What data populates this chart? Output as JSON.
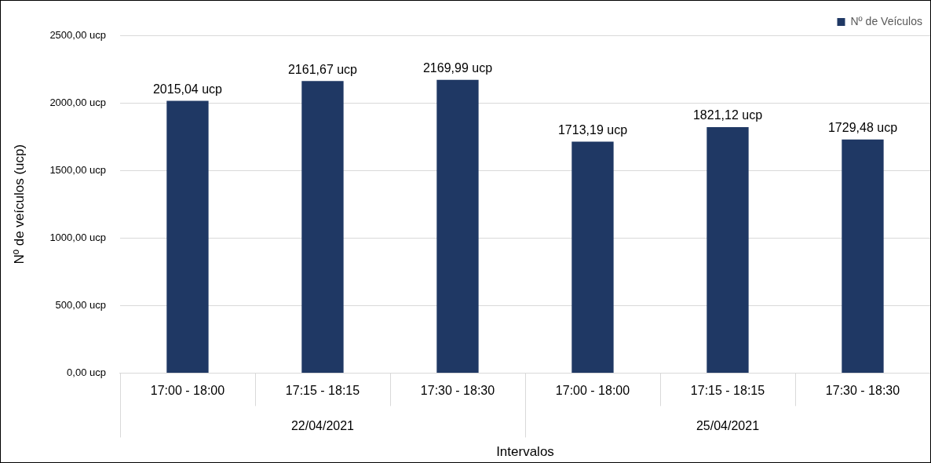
{
  "chart_data": {
    "type": "bar",
    "xlabel": "Intervalos",
    "ylabel": "Nº de veículos (ucp)",
    "categories": [
      "17:00 - 18:00",
      "17:15 - 18:15",
      "17:30 - 18:30",
      "17:00 - 18:00",
      "17:15 - 18:15",
      "17:30 - 18:30"
    ],
    "series": [
      {
        "name": "Nº de Veículos",
        "color": "#1f3864",
        "values": [
          2015.04,
          2161.67,
          2169.99,
          1713.19,
          1821.12,
          1729.48
        ],
        "value_labels": [
          "2015,04 ucp",
          "2161,67 ucp",
          "2169,99 ucp",
          "1713,19 ucp",
          "1821,12 ucp",
          "1729,48 ucp"
        ]
      }
    ],
    "ylim": [
      0,
      2500
    ],
    "yticks": [
      {
        "value": 0,
        "label": "0,00 ucp"
      },
      {
        "value": 500,
        "label": "500,00 ucp"
      },
      {
        "value": 1000,
        "label": "1000,00 ucp"
      },
      {
        "value": 1500,
        "label": "1500,00 ucp"
      },
      {
        "value": 2000,
        "label": "2000,00 ucp"
      },
      {
        "value": 2500,
        "label": "2500,00 ucp"
      }
    ],
    "annotations": [
      "22/04/2021",
      "25/04/2021"
    ],
    "grid": "y",
    "legend": "top right"
  }
}
